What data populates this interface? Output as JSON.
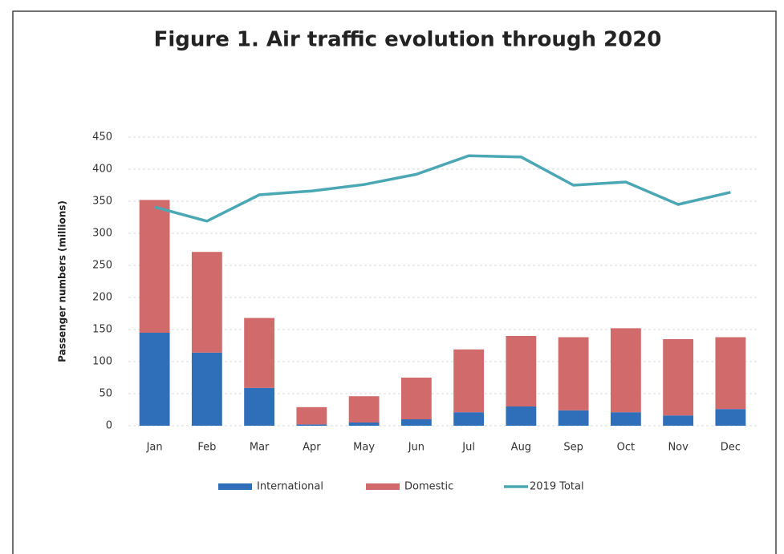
{
  "chart_data": {
    "type": "bar",
    "stacked": true,
    "title": "Figure 1. Air traffic evolution through 2020",
    "y_label": "Passenger numbers (millions)",
    "categories": [
      "Jan",
      "Feb",
      "Mar",
      "Apr",
      "May",
      "Jun",
      "Jul",
      "Aug",
      "Sep",
      "Oct",
      "Nov",
      "Dec"
    ],
    "series": [
      {
        "name": "International",
        "type": "bar",
        "color": "#2f6fba",
        "values": [
          145,
          114,
          59,
          2,
          5,
          10,
          21,
          30,
          24,
          21,
          16,
          26
        ]
      },
      {
        "name": "Domestic",
        "type": "bar",
        "color": "#d16a6a",
        "values": [
          207,
          157,
          109,
          27,
          41,
          65,
          98,
          110,
          114,
          131,
          119,
          112
        ]
      },
      {
        "name": "2019 Total",
        "type": "line",
        "color": "#4aa7b3",
        "values": [
          341,
          319,
          360,
          366,
          376,
          392,
          421,
          419,
          375,
          380,
          345,
          364
        ]
      }
    ],
    "ylim": [
      0,
      450
    ],
    "yticks": [
      0,
      50,
      100,
      150,
      200,
      250,
      300,
      350,
      400,
      450
    ],
    "grid": true,
    "legend": "bottom"
  }
}
